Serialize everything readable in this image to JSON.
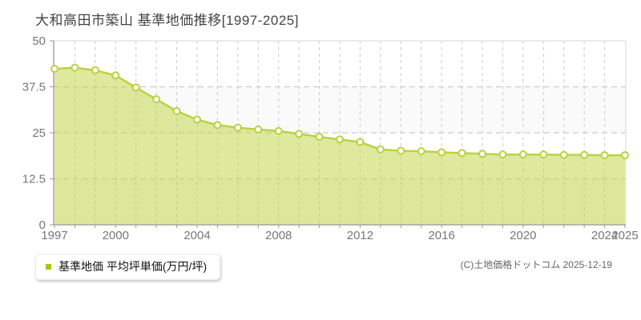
{
  "page": {
    "title": "大和高田市築山 基準地価推移[1997-2025]",
    "copyright": "(C)土地価格ドットコム 2025-12-19"
  },
  "legend": {
    "label": "基準地価 平均坪単価(万円/坪)",
    "marker_color": "#a6c710"
  },
  "colors": {
    "title_text": "#444444",
    "tick_label": "#777777",
    "grid": "#cccccc",
    "axis": "#999999",
    "plot_border": "#e3e3e3",
    "band_alt": "#fafafa",
    "line": "#b9d23f",
    "area_fill": "rgba(190,212,60,0.5)",
    "marker_fill": "#ffffff"
  },
  "chart_data": {
    "type": "area",
    "title": "大和高田市築山 基準地価推移[1997-2025]",
    "xlabel": "",
    "ylabel": "基準地価 平均坪単価(万円/坪)",
    "grid": true,
    "legend_position": "bottom-left",
    "ylim": [
      0,
      50
    ],
    "yticks": [
      0,
      12.5,
      25,
      37.5,
      50
    ],
    "ytick_labels": [
      "0",
      "12.5",
      "25",
      "37.5",
      "50"
    ],
    "xtick_years": [
      1997,
      2000,
      2004,
      2008,
      2012,
      2016,
      2020,
      2024,
      2025
    ],
    "x": [
      1997,
      1998,
      1999,
      2000,
      2001,
      2002,
      2003,
      2004,
      2005,
      2006,
      2007,
      2008,
      2009,
      2010,
      2011,
      2012,
      2013,
      2014,
      2015,
      2016,
      2017,
      2018,
      2019,
      2020,
      2021,
      2022,
      2023,
      2024,
      2025
    ],
    "series": [
      {
        "name": "基準地価 平均坪単価(万円/坪)",
        "values": [
          42.4,
          42.7,
          42.0,
          40.6,
          37.3,
          34.1,
          30.9,
          28.6,
          27.1,
          26.4,
          25.9,
          25.5,
          24.7,
          23.9,
          23.2,
          22.5,
          20.5,
          20.1,
          20.0,
          19.7,
          19.5,
          19.3,
          19.1,
          19.1,
          19.1,
          19.0,
          19.0,
          18.9,
          18.9
        ]
      }
    ]
  }
}
